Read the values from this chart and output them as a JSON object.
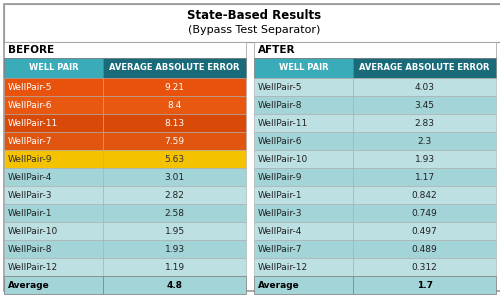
{
  "title_line1": "State-Based Results",
  "title_line2": "(Bypass Test Separator)",
  "before_label": "BEFORE",
  "after_label": "AFTER",
  "col_header1": "WELL PAIR",
  "col_header2": "AVERAGE ABSOLUTE ERROR",
  "before_rows": [
    {
      "well": "WellPair-5",
      "value": "9.21",
      "row_color": "#E8520C"
    },
    {
      "well": "WellPair-6",
      "value": "8.4",
      "row_color": "#E85810"
    },
    {
      "well": "WellPair-11",
      "value": "8.13",
      "row_color": "#D94A08"
    },
    {
      "well": "WellPair-7",
      "value": "7.59",
      "row_color": "#E05510"
    },
    {
      "well": "WellPair-9",
      "value": "5.63",
      "row_color": "#F5C200"
    },
    {
      "well": "WellPair-4",
      "value": "3.01",
      "row_color": null
    },
    {
      "well": "WellPair-3",
      "value": "2.82",
      "row_color": null
    },
    {
      "well": "WellPair-1",
      "value": "2.58",
      "row_color": null
    },
    {
      "well": "WellPair-10",
      "value": "1.95",
      "row_color": null
    },
    {
      "well": "WellPair-8",
      "value": "1.93",
      "row_color": null
    },
    {
      "well": "WellPair-12",
      "value": "1.19",
      "row_color": null
    }
  ],
  "before_avg_label": "Average",
  "before_avg_value": "4.8",
  "after_rows": [
    {
      "well": "WellPair-5",
      "value": "4.03"
    },
    {
      "well": "WellPair-8",
      "value": "3.45"
    },
    {
      "well": "WellPair-11",
      "value": "2.83"
    },
    {
      "well": "WellPair-6",
      "value": "2.3"
    },
    {
      "well": "WellPair-10",
      "value": "1.93"
    },
    {
      "well": "WellPair-9",
      "value": "1.17"
    },
    {
      "well": "WellPair-1",
      "value": "0.842"
    },
    {
      "well": "WellPair-3",
      "value": "0.749"
    },
    {
      "well": "WellPair-4",
      "value": "0.497"
    },
    {
      "well": "WellPair-7",
      "value": "0.489"
    },
    {
      "well": "WellPair-12",
      "value": "0.312"
    }
  ],
  "after_avg_label": "Average",
  "after_avg_value": "1.7",
  "header_bg": "#1A6B7A",
  "header_text": "#FFFFFF",
  "row_bg_light": "#BDE0E3",
  "row_bg_mid": "#A2D4D8",
  "avg_bg": "#A2D4D8",
  "teal_header_col1": "#3AABB8",
  "orange_text": "#FFFFFF",
  "yellow_text": "#333333"
}
